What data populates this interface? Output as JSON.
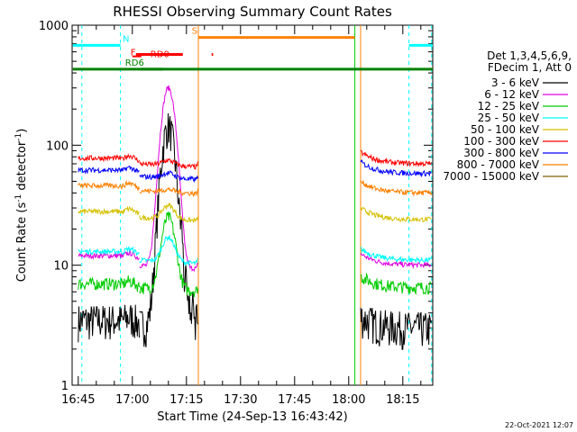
{
  "chart_data": {
    "type": "line",
    "title": "RHESSI Observing Summary Count Rates",
    "xlabel": "Start Time (24-Sep-13 16:43:42)",
    "ylabel_main": "Count Rate (s",
    "ylabel_sup1": "-1",
    "ylabel_mid": " detector",
    "ylabel_sup2": "-1",
    "ylabel_end": ")",
    "yscale": "log",
    "ylim": [
      1,
      1000
    ],
    "xlim_minutes": [
      -1.7,
      98.3
    ],
    "y_ticks": [
      "1",
      "10",
      "100",
      "1000"
    ],
    "x_ticks": [
      {
        "label": "16:45",
        "t": 0
      },
      {
        "label": "17:00",
        "t": 15
      },
      {
        "label": "17:15",
        "t": 30
      },
      {
        "label": "17:30",
        "t": 45
      },
      {
        "label": "17:45",
        "t": 60
      },
      {
        "label": "18:00",
        "t": 75
      },
      {
        "label": "18:15",
        "t": 90
      }
    ],
    "legend_header": [
      "Det 1,3,4,5,6,9,",
      "FDecim 1, Att 0"
    ],
    "series": [
      {
        "name": "3 - 6 keV",
        "color": "#000000",
        "levels": [
          3.5,
          3.2,
          3.0
        ]
      },
      {
        "name": "6 - 12 keV",
        "color": "#e000e0",
        "levels": [
          12,
          10,
          10
        ]
      },
      {
        "name": "12 - 25 keV",
        "color": "#00cc00",
        "levels": [
          7,
          6.5,
          6.5
        ]
      },
      {
        "name": "25 - 50 keV",
        "color": "#00ffff",
        "levels": [
          13,
          11,
          11
        ]
      },
      {
        "name": "50 - 100 keV",
        "color": "#d4c000",
        "levels": [
          28,
          25,
          24
        ]
      },
      {
        "name": "100 - 300 keV",
        "color": "#ff0000",
        "levels": [
          78,
          70,
          70
        ]
      },
      {
        "name": "300 - 800 keV",
        "color": "#0000ff",
        "levels": [
          62,
          55,
          58
        ]
      },
      {
        "name": "800 - 7000 keV",
        "color": "#ff8000",
        "levels": [
          46,
          42,
          40
        ]
      },
      {
        "name": "7000 - 15000 keV",
        "color": "#806000",
        "levels": [
          0,
          0,
          0
        ]
      }
    ],
    "flags": [
      {
        "label": "N",
        "color": "#00ffff",
        "y": 680
      },
      {
        "label": "F",
        "color": "#ff0000",
        "y": 570
      },
      {
        "label": "S",
        "color": "#ff8000",
        "y": 790
      },
      {
        "label": "RD0",
        "color": "#ff0000",
        "y": 550
      },
      {
        "label": "RD6",
        "color": "#008000",
        "y": 430
      }
    ],
    "saa_segments_minutes": [
      [
        0,
        11.7
      ],
      [
        91.7,
        98.3
      ]
    ],
    "night_segments_minutes": [
      [
        33.3,
        76.7
      ]
    ],
    "data_gaps_minutes": [
      [
        33.3,
        78.3
      ]
    ],
    "peak": {
      "t": 25,
      "series": "6 - 12 keV",
      "value": 370
    },
    "timestamp": "22-Oct-2021 12:07"
  }
}
